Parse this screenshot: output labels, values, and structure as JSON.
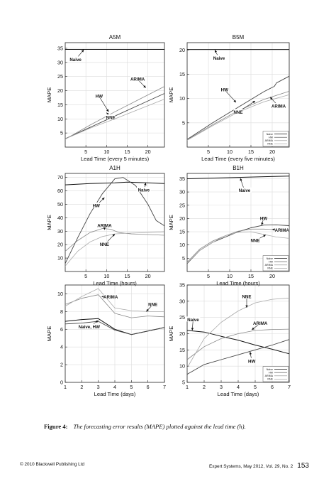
{
  "chart_data": [
    {
      "type": "line",
      "title": "A5M",
      "xlabel": "Lead Time (every 5 minutes)",
      "ylabel": "MAPE",
      "xlim": [
        0,
        24
      ],
      "ylim": [
        0,
        37
      ],
      "xticks": [
        5,
        10,
        15,
        20
      ],
      "yticks": [
        5,
        10,
        15,
        20,
        25,
        30,
        35
      ],
      "grid": true,
      "series": [
        {
          "name": "Naive",
          "x": [
            0,
            24
          ],
          "y": [
            34.6,
            34.6
          ]
        },
        {
          "name": "HW",
          "x": [
            0,
            6,
            12,
            18,
            24
          ],
          "y": [
            3,
            7,
            11,
            15,
            19
          ]
        },
        {
          "name": "ARIMA",
          "x": [
            0,
            6,
            12,
            18,
            24
          ],
          "y": [
            2.8,
            7.8,
            12.5,
            17,
            21.5
          ]
        },
        {
          "name": "NNE",
          "x": [
            0,
            6,
            12,
            18,
            24
          ],
          "y": [
            2.9,
            6.7,
            10,
            13.5,
            17
          ]
        }
      ],
      "annotations": [
        {
          "text": "Naive",
          "x": 2.5,
          "y": 31,
          "ax": 4.5,
          "ay": 34.5
        },
        {
          "text": "ARIMA",
          "x": 17.5,
          "y": 24,
          "ax": 19.5,
          "ay": 21
        },
        {
          "text": "HW",
          "x": 8.2,
          "y": 18,
          "ax": 10.5,
          "ay": 12.5
        },
        {
          "text": "NNE",
          "x": 11,
          "y": 10.5,
          "ax": 10,
          "ay": 12.2
        }
      ],
      "legend": {
        "position": "none",
        "entries": []
      }
    },
    {
      "type": "line",
      "title": "B5M",
      "xlabel": "Lead Time (every five minutes)",
      "ylabel": "MAPE",
      "xlim": [
        0,
        24
      ],
      "ylim": [
        0,
        21.5
      ],
      "xticks": [
        5,
        10,
        15,
        20
      ],
      "yticks": [
        5,
        10,
        15,
        20
      ],
      "grid": true,
      "series": [
        {
          "name": "Naive",
          "x": [
            0,
            24
          ],
          "y": [
            20.1,
            20.1
          ]
        },
        {
          "name": "HW",
          "x": [
            0,
            6,
            12,
            18,
            20.5,
            21,
            24
          ],
          "y": [
            1.6,
            5,
            8.2,
            11.4,
            12.5,
            13.2,
            14.6
          ]
        },
        {
          "name": "ARIMA",
          "x": [
            0,
            6,
            12,
            18,
            24
          ],
          "y": [
            1.5,
            4.6,
            7.5,
            9.8,
            11.5
          ]
        },
        {
          "name": "NNE",
          "x": [
            0,
            6,
            12,
            18,
            24
          ],
          "y": [
            1.4,
            4.4,
            7.2,
            9.3,
            10.8
          ]
        }
      ],
      "annotations": [
        {
          "text": "Naive",
          "x": 7.5,
          "y": 18.3,
          "ax": 6.5,
          "ay": 20
        },
        {
          "text": "HW",
          "x": 8.8,
          "y": 11.8,
          "ax": 11.5,
          "ay": 9.2
        },
        {
          "text": "ARIMA",
          "x": 21.5,
          "y": 8.4,
          "ax": 19.5,
          "ay": 10.3
        },
        {
          "text": "NNE",
          "x": 12,
          "y": 7.2,
          "ax": 16,
          "ay": 9.5
        }
      ],
      "legend": {
        "position": "bottom-right",
        "entries": [
          "Naive",
          "HW",
          "ARIMA",
          "NNE"
        ]
      }
    },
    {
      "type": "line",
      "title": "A1H",
      "xlabel": "Lead Time (hours)",
      "ylabel": "MAPE",
      "xlim": [
        0,
        24
      ],
      "ylim": [
        0,
        73
      ],
      "xticks": [
        5,
        10,
        15,
        20
      ],
      "yticks": [
        10,
        20,
        30,
        40,
        50,
        60,
        70
      ],
      "grid": true,
      "series": [
        {
          "name": "Naive",
          "x": [
            0,
            6,
            12,
            15,
            20,
            24
          ],
          "y": [
            64.5,
            65.5,
            66,
            66.5,
            66,
            65.5
          ]
        },
        {
          "name": "HW",
          "x": [
            0,
            3,
            6,
            9,
            12,
            14,
            17,
            20,
            22,
            24
          ],
          "y": [
            6,
            25,
            43,
            58,
            69,
            70,
            64,
            50,
            38,
            34
          ]
        },
        {
          "name": "ARIMA",
          "x": [
            0,
            3,
            6,
            9,
            11,
            13,
            16,
            20,
            24
          ],
          "y": [
            15,
            23,
            29,
            32,
            31.5,
            29,
            28,
            27.5,
            27
          ]
        },
        {
          "name": "NNE",
          "x": [
            0,
            3,
            6,
            9,
            12,
            15,
            20,
            24
          ],
          "y": [
            4,
            15,
            22,
            26,
            28,
            28.5,
            29,
            29.5
          ]
        }
      ],
      "annotations": [
        {
          "text": "HW",
          "x": 7.5,
          "y": 49,
          "ax": 9.5,
          "ay": 55
        },
        {
          "text": "Naive",
          "x": 19,
          "y": 60.5,
          "ax": 19.5,
          "ay": 66
        },
        {
          "text": "ARIMA",
          "x": 9.5,
          "y": 34,
          "ax": 9.5,
          "ay": 31
        },
        {
          "text": "NNE",
          "x": 9.5,
          "y": 20,
          "ax": 12,
          "ay": 28
        }
      ],
      "legend": {
        "position": "none",
        "entries": []
      }
    },
    {
      "type": "line",
      "title": "B1H",
      "xlabel": "Lead Time (hours)",
      "ylabel": "MAPE",
      "xlim": [
        0,
        24
      ],
      "ylim": [
        0,
        37
      ],
      "xticks": [
        5,
        10,
        15,
        20
      ],
      "yticks": [
        5,
        10,
        15,
        20,
        25,
        30,
        35
      ],
      "grid": true,
      "series": [
        {
          "name": "Naive",
          "x": [
            0,
            12,
            24
          ],
          "y": [
            35,
            35.5,
            36
          ]
        },
        {
          "name": "HW",
          "x": [
            0,
            3,
            6,
            9,
            12,
            15,
            18,
            21,
            24
          ],
          "y": [
            3,
            8,
            11,
            13,
            15,
            16.5,
            17.5,
            17.6,
            17.3
          ]
        },
        {
          "name": "ARIMA",
          "x": [
            0,
            3,
            6,
            9,
            12,
            15,
            18,
            21,
            24
          ],
          "y": [
            3.5,
            8.5,
            11.5,
            13.5,
            15.2,
            16,
            16,
            15.8,
            15.6
          ]
        },
        {
          "name": "NNE",
          "x": [
            0,
            3,
            6,
            9,
            12,
            15,
            18,
            21,
            24
          ],
          "y": [
            3.2,
            8,
            11,
            13.5,
            14.8,
            15,
            14,
            13,
            12.5
          ]
        }
      ],
      "annotations": [
        {
          "text": "Naive",
          "x": 13.5,
          "y": 30.5,
          "ax": 12.5,
          "ay": 35.2
        },
        {
          "text": "HW",
          "x": 18,
          "y": 20,
          "ax": 17.5,
          "ay": 17.5
        },
        {
          "text": "ARIMA",
          "x": 22.3,
          "y": 15.6,
          "ax": 20,
          "ay": 15.9
        },
        {
          "text": "NNE",
          "x": 16,
          "y": 11.6,
          "ax": 18.5,
          "ay": 13.8
        }
      ],
      "legend": {
        "position": "bottom-right",
        "entries": [
          "Naive",
          "HW",
          "ARIMA",
          "NNE"
        ]
      }
    },
    {
      "type": "line",
      "title": "",
      "xlabel": "Lead Time (days)",
      "ylabel": "MAPE",
      "xlim": [
        1,
        7
      ],
      "ylim": [
        0,
        11
      ],
      "xticks": [
        1,
        2,
        3,
        4,
        5,
        6,
        7
      ],
      "yticks": [
        0,
        2,
        4,
        6,
        8,
        10
      ],
      "grid": true,
      "series": [
        {
          "name": "Naive",
          "x": [
            1,
            2,
            3,
            4,
            5,
            6,
            7
          ],
          "y": [
            6.9,
            7.1,
            7.2,
            6.0,
            5.4,
            5.8,
            6.2
          ]
        },
        {
          "name": "HW",
          "x": [
            1,
            2,
            3,
            4,
            5,
            6,
            7
          ],
          "y": [
            6.6,
            6.7,
            6.9,
            5.9,
            5.4,
            5.8,
            6.2
          ]
        },
        {
          "name": "ARIMA",
          "x": [
            1,
            2,
            3,
            4,
            5,
            6,
            7
          ],
          "y": [
            8.8,
            9.5,
            9.9,
            7.8,
            7.3,
            7.5,
            7.4
          ]
        },
        {
          "name": "NNE",
          "x": [
            1,
            2,
            3,
            4,
            5,
            6,
            7
          ],
          "y": [
            8.6,
            9.7,
            10.6,
            8.4,
            8.1,
            8.0,
            8.0
          ]
        }
      ],
      "annotations": [
        {
          "text": "ARIMA",
          "x": 3.75,
          "y": 9.65,
          "ax": 3.2,
          "ay": 9.7
        },
        {
          "text": "NNE",
          "x": 6.3,
          "y": 8.8,
          "ax": 5.9,
          "ay": 8.0
        },
        {
          "text": "Naive, HW",
          "x": 2.45,
          "y": 6.25,
          "ax": 3.0,
          "ay": 7.0
        }
      ],
      "legend": {
        "position": "none",
        "entries": []
      }
    },
    {
      "type": "line",
      "title": "",
      "xlabel": "Lead Time (days)",
      "ylabel": "MAPE",
      "xlim": [
        1,
        7
      ],
      "ylim": [
        5,
        35
      ],
      "xticks": [
        1,
        2,
        3,
        4,
        5,
        6,
        7
      ],
      "yticks": [
        5,
        10,
        15,
        20,
        25,
        30,
        35
      ],
      "grid": true,
      "series": [
        {
          "name": "Naive",
          "x": [
            1,
            2,
            3,
            4,
            5,
            6,
            7
          ],
          "y": [
            21,
            20.5,
            19.2,
            18,
            16.5,
            15.2,
            13.8
          ]
        },
        {
          "name": "HW",
          "x": [
            1,
            2,
            3,
            4,
            5,
            6,
            7
          ],
          "y": [
            7.5,
            10.5,
            12,
            13.5,
            15,
            16.5,
            18.2
          ]
        },
        {
          "name": "ARIMA",
          "x": [
            1,
            2,
            3,
            4,
            5,
            6,
            7
          ],
          "y": [
            12,
            16,
            18.5,
            20,
            21,
            21.3,
            21.4
          ]
        },
        {
          "name": "NNE",
          "x": [
            1,
            2,
            3,
            4,
            5,
            6,
            7
          ],
          "y": [
            9.5,
            18.5,
            23.5,
            27,
            29.5,
            30.6,
            31
          ]
        }
      ],
      "annotations": [
        {
          "text": "Naive",
          "x": 1.35,
          "y": 24.3,
          "ax": 1.3,
          "ay": 21
        },
        {
          "text": "NNE",
          "x": 4.5,
          "y": 31.4,
          "ax": 4.5,
          "ay": 28
        },
        {
          "text": "ARIMA",
          "x": 5.3,
          "y": 23.2,
          "ax": 4.8,
          "ay": 21.2
        },
        {
          "text": "HW",
          "x": 4.8,
          "y": 11.5,
          "ax": 4.7,
          "ay": 14.4
        }
      ],
      "legend": {
        "position": "bottom-right",
        "entries": [
          "Naive",
          "HW",
          "ARIMA",
          "NNE"
        ]
      }
    }
  ],
  "caption": {
    "label": "Figure 4:",
    "text": "The forecasting error results (MAPE) plotted against the lead time (h)."
  },
  "footer": {
    "copyright": "© 2010 Blackwell Publishing Ltd",
    "journal": "Expert Systems, May 2012, Vol. 29, No. 2",
    "page": "153"
  }
}
